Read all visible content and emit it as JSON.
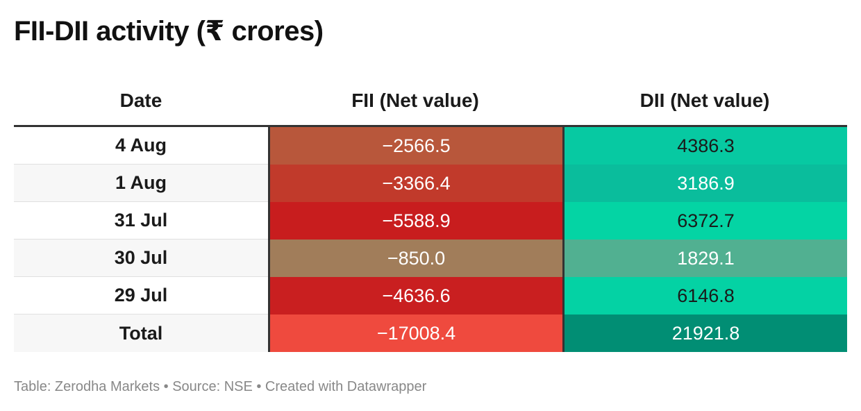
{
  "title": "FII-DII activity (₹ crores)",
  "footer": "Table: Zerodha Markets • Source: NSE • Created with Datawrapper",
  "chart_data": {
    "type": "table",
    "title": "FII-DII activity (₹ crores)",
    "columns": [
      "Date",
      "FII (Net value)",
      "DII (Net value)"
    ],
    "rows": [
      {
        "date": "4 Aug",
        "fii": "−2566.5",
        "dii": "4386.3",
        "fii_color": "#b8573b",
        "dii_color": "#07c9a2",
        "dii_text": "#1a1a1a"
      },
      {
        "date": "1 Aug",
        "fii": "−3366.4",
        "dii": "3186.9",
        "fii_color": "#c13a2b",
        "dii_color": "#0abd9c",
        "dii_text": "#ffffff"
      },
      {
        "date": "31 Jul",
        "fii": "−5588.9",
        "dii": "6372.7",
        "fii_color": "#c81d1e",
        "dii_color": "#04d4a4",
        "dii_text": "#1a1a1a"
      },
      {
        "date": "30 Jul",
        "fii": "−850.0",
        "dii": "1829.1",
        "fii_color": "#a17d5a",
        "dii_color": "#51b091",
        "dii_text": "#ffffff"
      },
      {
        "date": "29 Jul",
        "fii": "−4636.6",
        "dii": "6146.8",
        "fii_color": "#c91f20",
        "dii_color": "#04d2a4",
        "dii_text": "#1a1a1a"
      },
      {
        "date": "Total",
        "fii": "−17008.4",
        "dii": "21921.8",
        "fii_color": "#ef4a3e",
        "dii_color": "#018e74",
        "dii_text": "#ffffff"
      }
    ]
  }
}
